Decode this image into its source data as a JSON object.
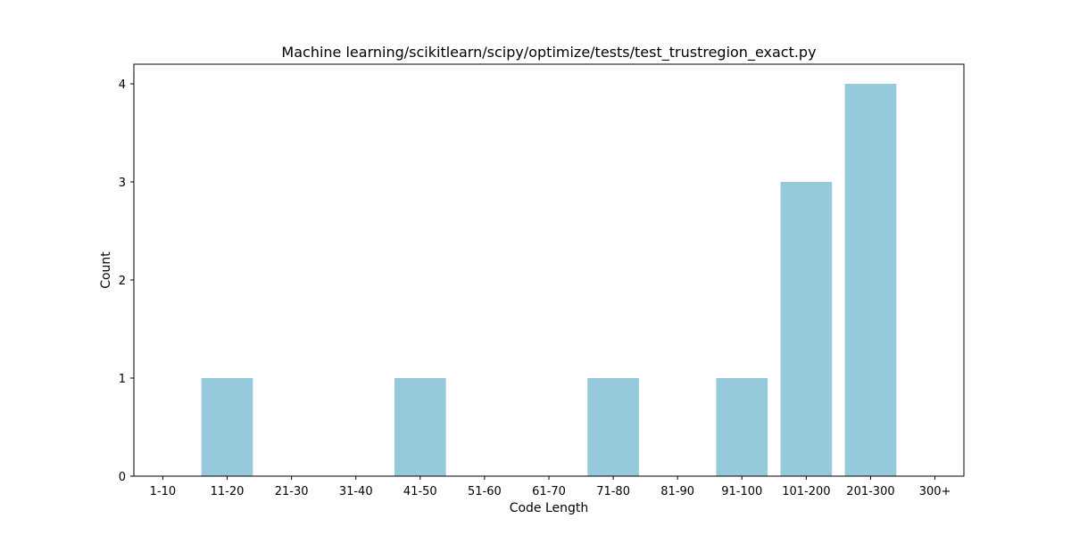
{
  "chart_data": {
    "type": "bar",
    "title": "Machine learning/scikitlearn/scipy/optimize/tests/test_trustregion_exact.py",
    "xlabel": "Code Length",
    "ylabel": "Count",
    "categories": [
      "1-10",
      "11-20",
      "21-30",
      "31-40",
      "41-50",
      "51-60",
      "61-70",
      "71-80",
      "81-90",
      "91-100",
      "101-200",
      "201-300",
      "300+"
    ],
    "values": [
      0,
      1,
      0,
      0,
      1,
      0,
      0,
      1,
      0,
      1,
      3,
      4,
      0
    ],
    "yticks": [
      0,
      1,
      2,
      3,
      4
    ],
    "ylim": [
      0,
      4.2
    ],
    "bar_color": "#96c9dc",
    "grid": false,
    "legend": "none"
  }
}
